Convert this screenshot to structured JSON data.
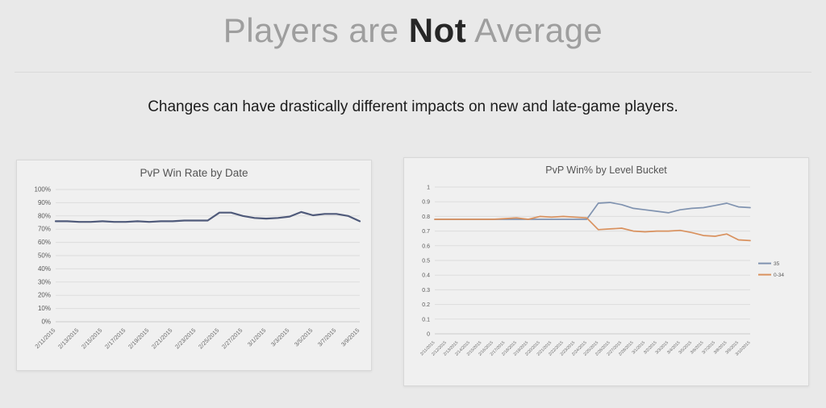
{
  "slide": {
    "title_prefix": "Players are ",
    "title_emphasis": "Not",
    "title_suffix": " Average",
    "subtitle": "Changes can have drastically different impacts on new and late-game players."
  },
  "colors": {
    "background": "#e9e9e9",
    "card_background": "#f0f0f0",
    "card_border": "#d8d8d8",
    "title_gray": "#9e9e9e",
    "title_dark": "#262626",
    "axis_text": "#595959",
    "gridline": "#dddddd",
    "left_series_navy": "#4f5a7a",
    "right_series_blue": "#8093b0",
    "right_series_orange": "#d9915e"
  },
  "chart_data": [
    {
      "type": "line",
      "title": "PvP Win Rate by Date",
      "grid": true,
      "ylim": [
        0,
        100
      ],
      "ytick_step": 10,
      "ytick_format": "percent",
      "x_label_every": 2,
      "x_axis_labels_shown": [
        "2/11/2015",
        "2/13/2015",
        "2/15/2015",
        "2/17/2015",
        "2/19/2015",
        "2/21/2015",
        "2/23/2015",
        "2/25/2015",
        "2/27/2015",
        "3/1/2015",
        "3/3/2015",
        "3/5/2015",
        "3/7/2015",
        "3/9/2015"
      ],
      "categories": [
        "2/11/2015",
        "2/12/2015",
        "2/13/2015",
        "2/14/2015",
        "2/15/2015",
        "2/16/2015",
        "2/17/2015",
        "2/18/2015",
        "2/19/2015",
        "2/20/2015",
        "2/21/2015",
        "2/22/2015",
        "2/23/2015",
        "2/24/2015",
        "2/25/2015",
        "2/26/2015",
        "2/27/2015",
        "2/28/2015",
        "3/1/2015",
        "3/2/2015",
        "3/3/2015",
        "3/4/2015",
        "3/5/2015",
        "3/6/2015",
        "3/7/2015",
        "3/8/2015",
        "3/9/2015"
      ],
      "legend": null,
      "series": [
        {
          "name": "PvP Win Rate",
          "color": "#4f5a7a",
          "width": 2.2,
          "values": [
            76,
            76,
            75.5,
            75.5,
            76,
            75.5,
            75.5,
            76,
            75.5,
            76,
            76,
            76.5,
            76.5,
            76.5,
            82.5,
            82.5,
            80,
            78.5,
            78,
            78.5,
            79.5,
            83,
            80.5,
            81.5,
            81.5,
            80,
            76
          ]
        }
      ]
    },
    {
      "type": "line",
      "title": "PvP Win% by Level Bucket",
      "grid": true,
      "ylim": [
        0,
        1
      ],
      "ytick_step": 0.1,
      "ytick_format": "number",
      "x_label_every": 1,
      "categories": [
        "2/11/2015",
        "2/12/2015",
        "2/13/2015",
        "2/14/2015",
        "2/15/2015",
        "2/16/2015",
        "2/17/2015",
        "2/18/2015",
        "2/19/2015",
        "2/20/2015",
        "2/21/2015",
        "2/22/2015",
        "2/23/2015",
        "2/24/2015",
        "2/25/2015",
        "2/26/2015",
        "2/27/2015",
        "2/28/2015",
        "3/1/2015",
        "3/2/2015",
        "3/3/2015",
        "3/4/2015",
        "3/5/2015",
        "3/6/2015",
        "3/7/2015",
        "3/8/2015",
        "3/9/2015",
        "3/10/2015"
      ],
      "legend": {
        "position": "right",
        "entries": [
          "35",
          "0-34"
        ]
      },
      "series": [
        {
          "name": "35",
          "color": "#8093b0",
          "width": 1.7,
          "values": [
            0.78,
            0.78,
            0.78,
            0.78,
            0.78,
            0.78,
            0.78,
            0.78,
            0.78,
            0.78,
            0.78,
            0.78,
            0.78,
            0.78,
            0.89,
            0.895,
            0.88,
            0.855,
            0.845,
            0.835,
            0.825,
            0.845,
            0.855,
            0.86,
            0.875,
            0.89,
            0.865,
            0.86
          ]
        },
        {
          "name": "0-34",
          "color": "#d9915e",
          "width": 1.7,
          "values": [
            0.78,
            0.78,
            0.78,
            0.78,
            0.78,
            0.78,
            0.785,
            0.79,
            0.78,
            0.8,
            0.795,
            0.8,
            0.795,
            0.79,
            0.71,
            0.715,
            0.72,
            0.7,
            0.695,
            0.7,
            0.7,
            0.705,
            0.69,
            0.67,
            0.665,
            0.68,
            0.64,
            0.635
          ]
        }
      ]
    }
  ]
}
